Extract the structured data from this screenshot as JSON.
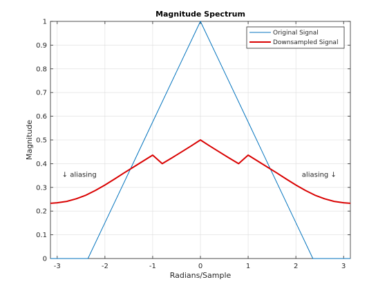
{
  "chart_data": {
    "type": "line",
    "title": "Magnitude Spectrum",
    "xlabel": "Radians/Sample",
    "ylabel": "Magnitude",
    "xlim": [
      -3.14159,
      3.14159
    ],
    "ylim": [
      0,
      1
    ],
    "xticks": [
      -3,
      -2,
      -1,
      0,
      1,
      2,
      3
    ],
    "xtick_labels": [
      "-3",
      "-2",
      "-1",
      "0",
      "1",
      "2",
      "3"
    ],
    "yticks": [
      0,
      0.1,
      0.2,
      0.3,
      0.4,
      0.5,
      0.6,
      0.7,
      0.8,
      0.9,
      1
    ],
    "ytick_labels": [
      "0",
      "0.1",
      "0.2",
      "0.3",
      "0.4",
      "0.5",
      "0.6",
      "0.7",
      "0.8",
      "0.9",
      "1"
    ],
    "grid": true,
    "legend_position": "top-right",
    "series": [
      {
        "name": "Original Signal",
        "color": "#0072BD",
        "x": [
          -3.1416,
          -2.356,
          -2.0,
          -1.5,
          -1.0,
          -0.5,
          0,
          0.5,
          1.0,
          1.5,
          2.0,
          2.356,
          3.1416
        ],
        "y": [
          0,
          0,
          0.151,
          0.363,
          0.576,
          0.788,
          1.0,
          0.788,
          0.576,
          0.363,
          0.151,
          0,
          0
        ]
      },
      {
        "name": "Downsampled Signal",
        "color": "#D90000",
        "x": [
          -3.1416,
          -3.0,
          -2.8,
          -2.6,
          -2.4,
          -2.2,
          -2.0,
          -1.8,
          -1.6,
          -1.4,
          -1.2,
          -1.0,
          -0.8,
          -0.6,
          -0.4,
          -0.2,
          0,
          0.2,
          0.4,
          0.6,
          0.8,
          1.0,
          1.2,
          1.4,
          1.6,
          1.8,
          2.0,
          2.2,
          2.4,
          2.6,
          2.8,
          3.0,
          3.1416
        ],
        "y": [
          0.233,
          0.235,
          0.241,
          0.252,
          0.267,
          0.287,
          0.31,
          0.335,
          0.361,
          0.386,
          0.411,
          0.436,
          0.4,
          0.424,
          0.449,
          0.474,
          0.5,
          0.474,
          0.449,
          0.424,
          0.4,
          0.436,
          0.411,
          0.386,
          0.361,
          0.335,
          0.31,
          0.287,
          0.267,
          0.252,
          0.241,
          0.235,
          0.233
        ]
      }
    ],
    "annotations": [
      {
        "text": "↓ aliasing",
        "x": -2.9,
        "y": 0.345
      },
      {
        "text": "aliasing ↓",
        "x": 2.85,
        "y": 0.345
      }
    ]
  }
}
